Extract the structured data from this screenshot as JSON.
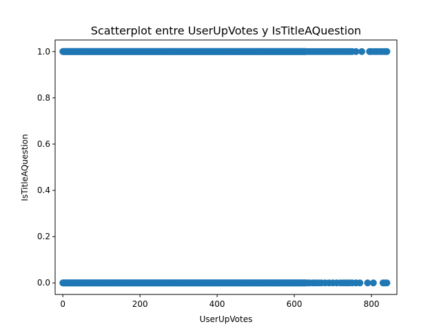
{
  "chart_data": {
    "type": "scatter",
    "title": "Scatterplot entre UserUpVotes y IsTitleAQuestion",
    "xlabel": "UserUpVotes",
    "ylabel": "IsTitleAQuestion",
    "xlim": [
      -20,
      866
    ],
    "ylim": [
      -0.05,
      1.05
    ],
    "xticks": [
      0,
      200,
      400,
      600,
      800
    ],
    "xtick_labels": [
      "0",
      "200",
      "400",
      "600",
      "800"
    ],
    "yticks": [
      0.0,
      0.2,
      0.4,
      0.6,
      0.8,
      1.0
    ],
    "ytick_labels": [
      "0.0",
      "0.2",
      "0.4",
      "0.6",
      "0.8",
      "1.0"
    ],
    "grid": false,
    "color": "#1f77b4",
    "series": [
      {
        "y": 1,
        "dense_range": [
          0,
          630
        ],
        "sparse_x": [
          635,
          640,
          645,
          650,
          655,
          660,
          665,
          670,
          675,
          680,
          685,
          690,
          695,
          700,
          705,
          710,
          715,
          720,
          725,
          730,
          735,
          740,
          745,
          750,
          760,
          775,
          795,
          800,
          808,
          815,
          822,
          828,
          835,
          840
        ]
      },
      {
        "y": 0,
        "dense_range": [
          0,
          630
        ],
        "sparse_x": [
          635,
          640,
          648,
          655,
          662,
          670,
          680,
          690,
          700,
          710,
          720,
          728,
          735,
          742,
          750,
          760,
          770,
          790,
          805,
          830,
          835,
          840
        ]
      }
    ]
  }
}
